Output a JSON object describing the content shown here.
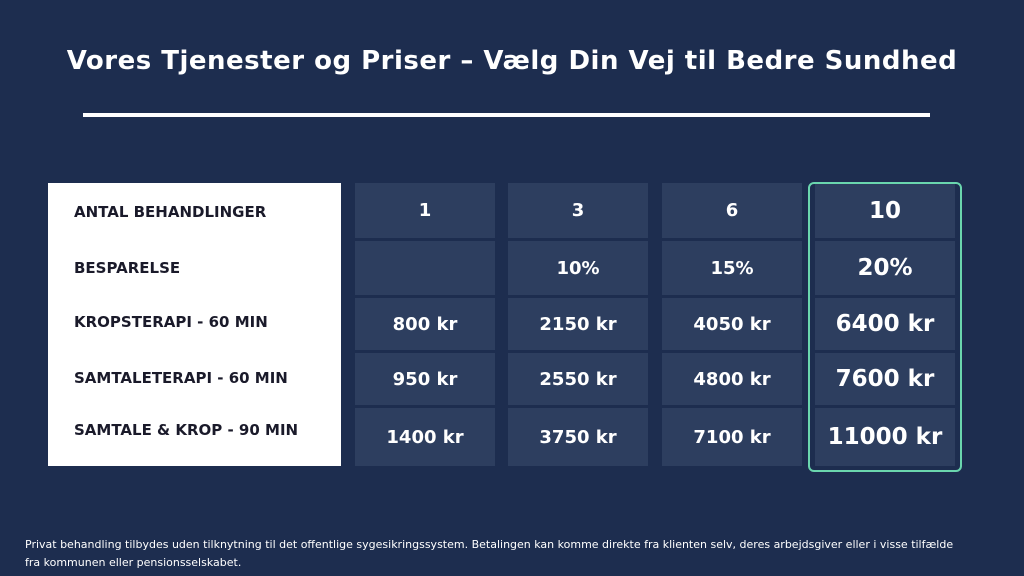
{
  "header": {
    "title": "Vores Tjenester og Priser – Vælg Din Vej til Bedre Sundhed"
  },
  "table": {
    "row_labels": [
      "ANTAL BEHANDLINGER",
      "BESPARELSE",
      "KROPSTERAPI - 60 MIN",
      "SAMTALETERAPI - 60 MIN",
      "SAMTALE & KROP - 90 MIN"
    ],
    "columns": [
      [
        "1",
        null,
        "800 kr",
        "950 kr",
        "1400 kr"
      ],
      [
        "3",
        "10%",
        "2150 kr",
        "2550 kr",
        "3750 kr"
      ],
      [
        "6",
        "15%",
        "4050 kr",
        "4800 kr",
        "7100 kr"
      ],
      [
        "10",
        "20%",
        "6400 kr",
        "7600 kr",
        "11000 kr"
      ]
    ]
  },
  "footer": {
    "lines": [
      "Privat behandling tilbydes uden tilknytning til det offentlige sygesikringssystem. Betalingen kan komme direkte fra klienten selv, deres arbejdsgiver eller i visse tilfælde",
      "fra kommunen eller pensionsselskabet."
    ]
  }
}
